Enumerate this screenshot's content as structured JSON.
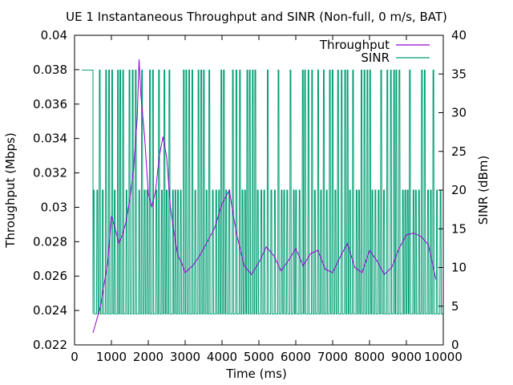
{
  "chart_data": {
    "type": "line",
    "title": "UE 1 Instantaneous Throughput and SINR (Non-full, 0 m/s, BAT)",
    "xlabel": "Time (ms)",
    "ylabel": "Throughput (Mbps)",
    "y2label": "SINR (dBm)",
    "xlim": [
      0,
      10000
    ],
    "ylim": [
      0.022,
      0.04
    ],
    "y2lim": [
      0,
      40
    ],
    "xticks": [
      "0",
      "1000",
      "2000",
      "3000",
      "4000",
      "5000",
      "6000",
      "7000",
      "8000",
      "9000",
      "10000"
    ],
    "yticks": [
      "0.022",
      "0.024",
      "0.026",
      "0.028",
      "0.03",
      "0.032",
      "0.034",
      "0.036",
      "0.038",
      "0.04"
    ],
    "y2ticks": [
      "0",
      "5",
      "10",
      "15",
      "20",
      "25",
      "30",
      "35",
      "40"
    ],
    "legend_position": "top-right",
    "colors": {
      "throughput": "#9400d3",
      "sinr": "#009e73"
    },
    "sinr_levels": {
      "high": 35.5,
      "mid": 20,
      "low": 4
    },
    "series": [
      {
        "name": "Throughput",
        "axis": "left",
        "x": [
          500,
          700,
          800,
          900,
          1000,
          1100,
          1200,
          1300,
          1400,
          1500,
          1600,
          1700,
          1750,
          1800,
          1900,
          2000,
          2100,
          2200,
          2300,
          2400,
          2500,
          2600,
          2700,
          2800,
          2900,
          3000,
          3200,
          3400,
          3600,
          3800,
          4000,
          4200,
          4300,
          4400,
          4600,
          4800,
          5000,
          5200,
          5400,
          5600,
          5800,
          6000,
          6200,
          6400,
          6600,
          6800,
          7000,
          7200,
          7400,
          7600,
          7800,
          8000,
          8200,
          8400,
          8600,
          8800,
          9000,
          9200,
          9400,
          9600,
          9800
        ],
        "y": [
          0.0227,
          0.0242,
          0.0255,
          0.0268,
          0.0295,
          0.0288,
          0.0279,
          0.0284,
          0.0292,
          0.0305,
          0.0322,
          0.0352,
          0.0386,
          0.0365,
          0.0341,
          0.0308,
          0.03,
          0.031,
          0.033,
          0.0341,
          0.0329,
          0.03,
          0.0285,
          0.0272,
          0.0268,
          0.0262,
          0.0266,
          0.0272,
          0.028,
          0.0288,
          0.0302,
          0.031,
          0.0296,
          0.0284,
          0.0266,
          0.0261,
          0.0268,
          0.0277,
          0.0272,
          0.0263,
          0.0269,
          0.0276,
          0.0266,
          0.0273,
          0.0275,
          0.0264,
          0.0262,
          0.0271,
          0.0279,
          0.0265,
          0.0262,
          0.0275,
          0.0269,
          0.0261,
          0.0265,
          0.0276,
          0.0284,
          0.0285,
          0.0283,
          0.0278,
          0.0258
        ]
      },
      {
        "name": "SINR",
        "axis": "right"
      }
    ]
  }
}
